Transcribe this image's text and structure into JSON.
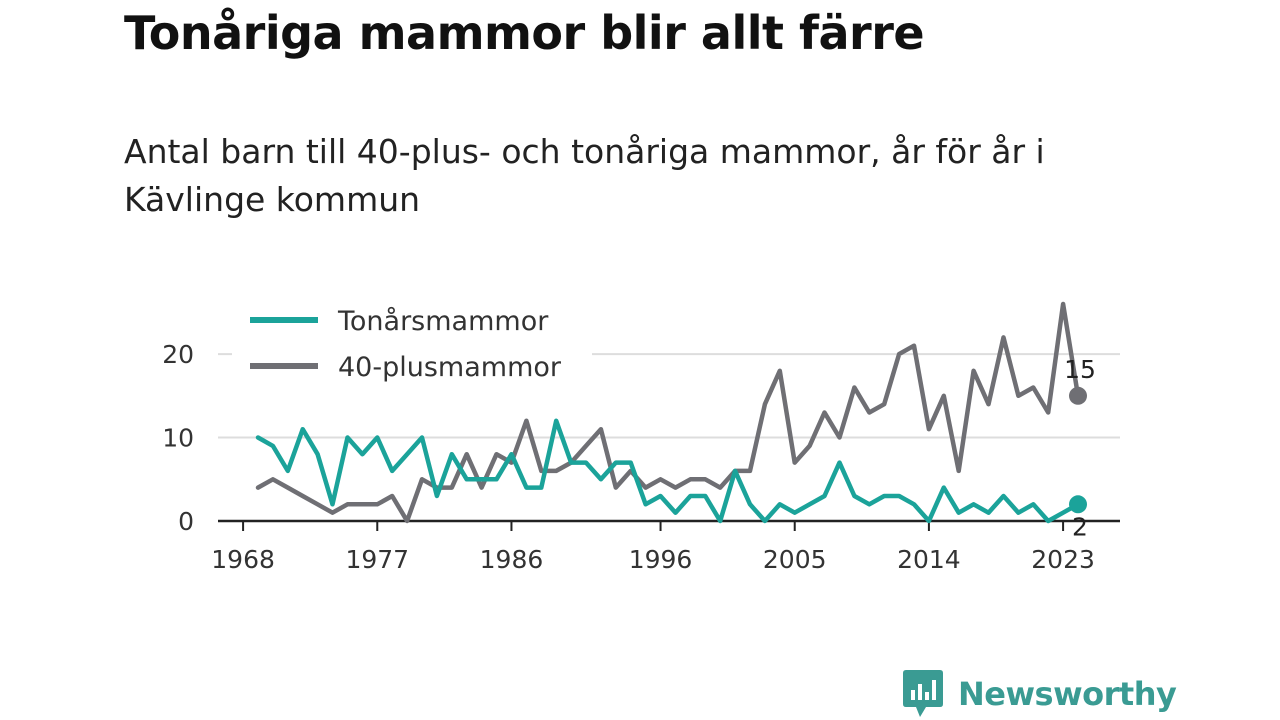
{
  "title": "Tonåriga mammor blir allt färre",
  "subtitle": "Antal barn till 40-plus- och tonåriga mammor, år för år i Kävlinge kommun",
  "brand": "Newsworthy",
  "chart_data": {
    "type": "line",
    "x": [
      1969,
      1970,
      1971,
      1972,
      1973,
      1974,
      1975,
      1976,
      1977,
      1978,
      1979,
      1980,
      1981,
      1982,
      1983,
      1984,
      1985,
      1986,
      1987,
      1988,
      1989,
      1990,
      1991,
      1992,
      1993,
      1994,
      1995,
      1996,
      1997,
      1998,
      1999,
      2000,
      2001,
      2002,
      2003,
      2004,
      2005,
      2006,
      2007,
      2008,
      2009,
      2010,
      2011,
      2012,
      2013,
      2014,
      2015,
      2016,
      2017,
      2018,
      2019,
      2020,
      2021,
      2022,
      2023,
      2024
    ],
    "x_ticks": [
      "1968",
      "1977",
      "1986",
      "1996",
      "2005",
      "2014",
      "2023"
    ],
    "y_ticks": [
      "0",
      "10",
      "20"
    ],
    "ylim": [
      0,
      26
    ],
    "grid": true,
    "legend": "top-left",
    "series": [
      {
        "name": "Tonårsmammor",
        "color": "#1ba39a",
        "values": [
          10,
          9,
          6,
          11,
          8,
          2,
          10,
          8,
          10,
          6,
          8,
          10,
          3,
          8,
          5,
          5,
          5,
          8,
          4,
          4,
          12,
          7,
          7,
          5,
          7,
          7,
          2,
          3,
          1,
          3,
          3,
          0,
          6,
          2,
          0,
          2,
          1,
          2,
          3,
          7,
          3,
          2,
          3,
          3,
          2,
          0,
          4,
          1,
          2,
          1,
          3,
          1,
          2,
          0,
          1,
          2
        ],
        "end_label": "2"
      },
      {
        "name": "40-plusmammor",
        "color": "#6f6f74",
        "values": [
          4,
          5,
          4,
          3,
          2,
          1,
          2,
          2,
          2,
          3,
          0,
          5,
          4,
          4,
          8,
          4,
          8,
          7,
          12,
          6,
          6,
          7,
          9,
          11,
          4,
          6,
          4,
          5,
          4,
          5,
          5,
          4,
          6,
          6,
          14,
          18,
          7,
          9,
          13,
          10,
          16,
          13,
          14,
          20,
          21,
          11,
          15,
          6,
          18,
          14,
          22,
          15,
          16,
          13,
          26,
          15
        ],
        "end_label": "15"
      }
    ]
  }
}
